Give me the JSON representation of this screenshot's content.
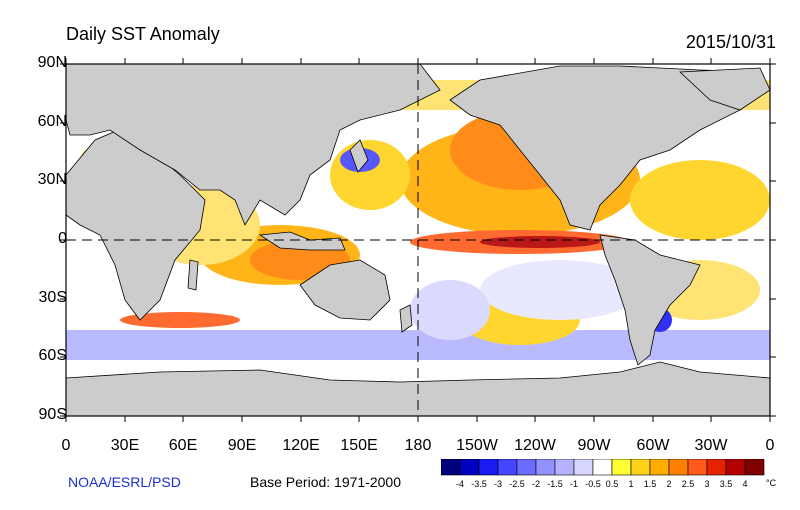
{
  "title": "Daily SST Anomaly",
  "date": "2015/10/31",
  "y_ticks": [
    "90N",
    "60N",
    "30N",
    "0",
    "30S",
    "60S",
    "90S"
  ],
  "x_ticks": [
    "0",
    "30E",
    "60E",
    "90E",
    "120E",
    "150E",
    "180",
    "150W",
    "120W",
    "90W",
    "60W",
    "30W",
    "0"
  ],
  "credit": "NOAA/ESRL/PSD",
  "base_period": "Base Period: 1971-2000",
  "colorbar": {
    "labels": [
      "-4",
      "-3.5",
      "-3",
      "-2.5",
      "-2",
      "-1.5",
      "-1",
      "-0.5",
      "0.5",
      "1",
      "1.5",
      "2",
      "2.5",
      "3",
      "3.5",
      "4"
    ],
    "colors": [
      "#00007f",
      "#0000bf",
      "#1a1af2",
      "#4545ff",
      "#6b6bff",
      "#9191ff",
      "#b3b3ff",
      "#d6d6ff",
      "#ffffff",
      "#ffff33",
      "#ffd21a",
      "#ffad00",
      "#ff8000",
      "#ff5a1a",
      "#e62200",
      "#b30000",
      "#7f0000"
    ],
    "unit": "°C"
  },
  "colors": {
    "land": "#cccccc",
    "ocean_warm": "#ffad00",
    "ocean_cool": "#9191ff",
    "credit": "#1a2fd6"
  }
}
